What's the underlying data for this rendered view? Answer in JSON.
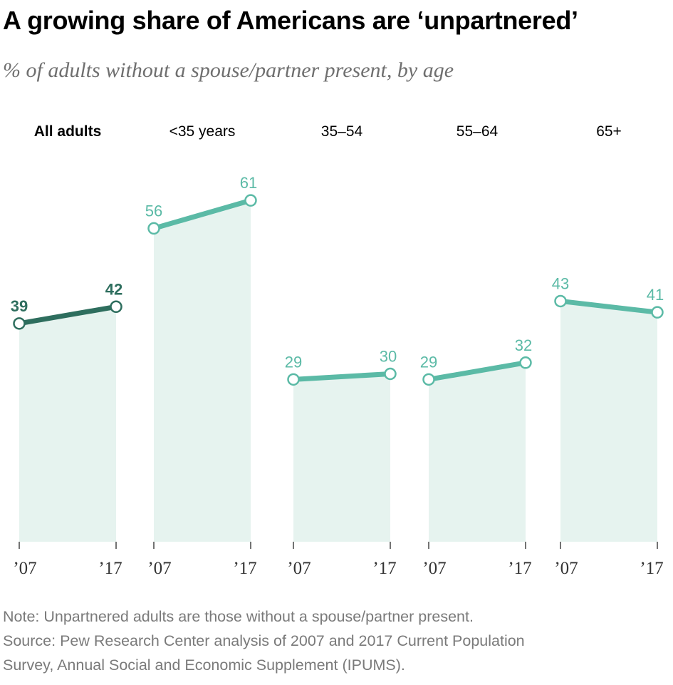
{
  "chart_data": {
    "type": "line",
    "title": "A growing share of Americans are ‘unpartnered’",
    "subtitle": "% of adults without a spouse/partner present, by age",
    "x_labels": [
      "’07",
      "’17"
    ],
    "ylim": [
      0,
      65
    ],
    "panels": [
      {
        "label": "All adults",
        "values": [
          39,
          42
        ],
        "highlight": true
      },
      {
        "label": "<35 years",
        "values": [
          56,
          61
        ],
        "highlight": false
      },
      {
        "label": "35–54",
        "values": [
          29,
          30
        ],
        "highlight": false
      },
      {
        "label": "55–64",
        "values": [
          29,
          32
        ],
        "highlight": false
      },
      {
        "label": "65+",
        "values": [
          43,
          41
        ],
        "highlight": false
      }
    ],
    "colors": {
      "highlight_line": "#2e6e5e",
      "line": "#5bbaa6",
      "area": "#e6f3ef",
      "axis": "#444444",
      "panel_label": "#000000"
    }
  },
  "footer": {
    "note": "Note: Unpartnered adults are those without a spouse/partner present.",
    "source_line1": "Source: Pew Research Center analysis of 2007 and 2017 Current Population",
    "source_line2": "Survey, Annual Social and Economic Supplement (IPUMS)."
  }
}
